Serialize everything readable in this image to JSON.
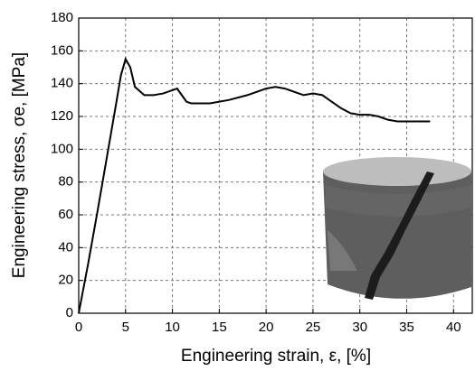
{
  "chart_data": {
    "type": "line",
    "xlabel": "Engineering strain, ε, [%]",
    "ylabel": "Engineering stress, σe, [MPa]",
    "x": [
      0,
      1,
      2,
      3,
      4,
      4.5,
      5,
      5.5,
      6,
      7,
      8,
      9,
      10,
      10.5,
      11,
      11.5,
      12,
      14,
      16,
      18,
      20,
      21,
      22,
      23,
      24,
      25,
      26,
      27,
      28,
      29,
      30,
      31,
      32,
      33,
      34,
      35,
      37.5
    ],
    "series": [
      {
        "color": "#000000",
        "values": [
          0,
          30,
          62,
          95,
          128,
          145,
          155,
          150,
          138,
          133,
          133,
          134,
          136,
          137,
          133,
          129,
          128,
          128,
          130,
          133,
          137,
          138,
          137,
          135,
          133,
          134,
          133,
          129,
          125,
          122,
          121,
          121,
          120,
          118,
          117,
          117,
          117
        ]
      }
    ],
    "xlim": [
      0,
      42
    ],
    "xticks": [
      0,
      5,
      10,
      15,
      20,
      25,
      30,
      35,
      40
    ],
    "ylim": [
      0,
      180
    ],
    "yticks": [
      0,
      20,
      40,
      60,
      80,
      100,
      120,
      140,
      160,
      180
    ],
    "grid": true
  }
}
